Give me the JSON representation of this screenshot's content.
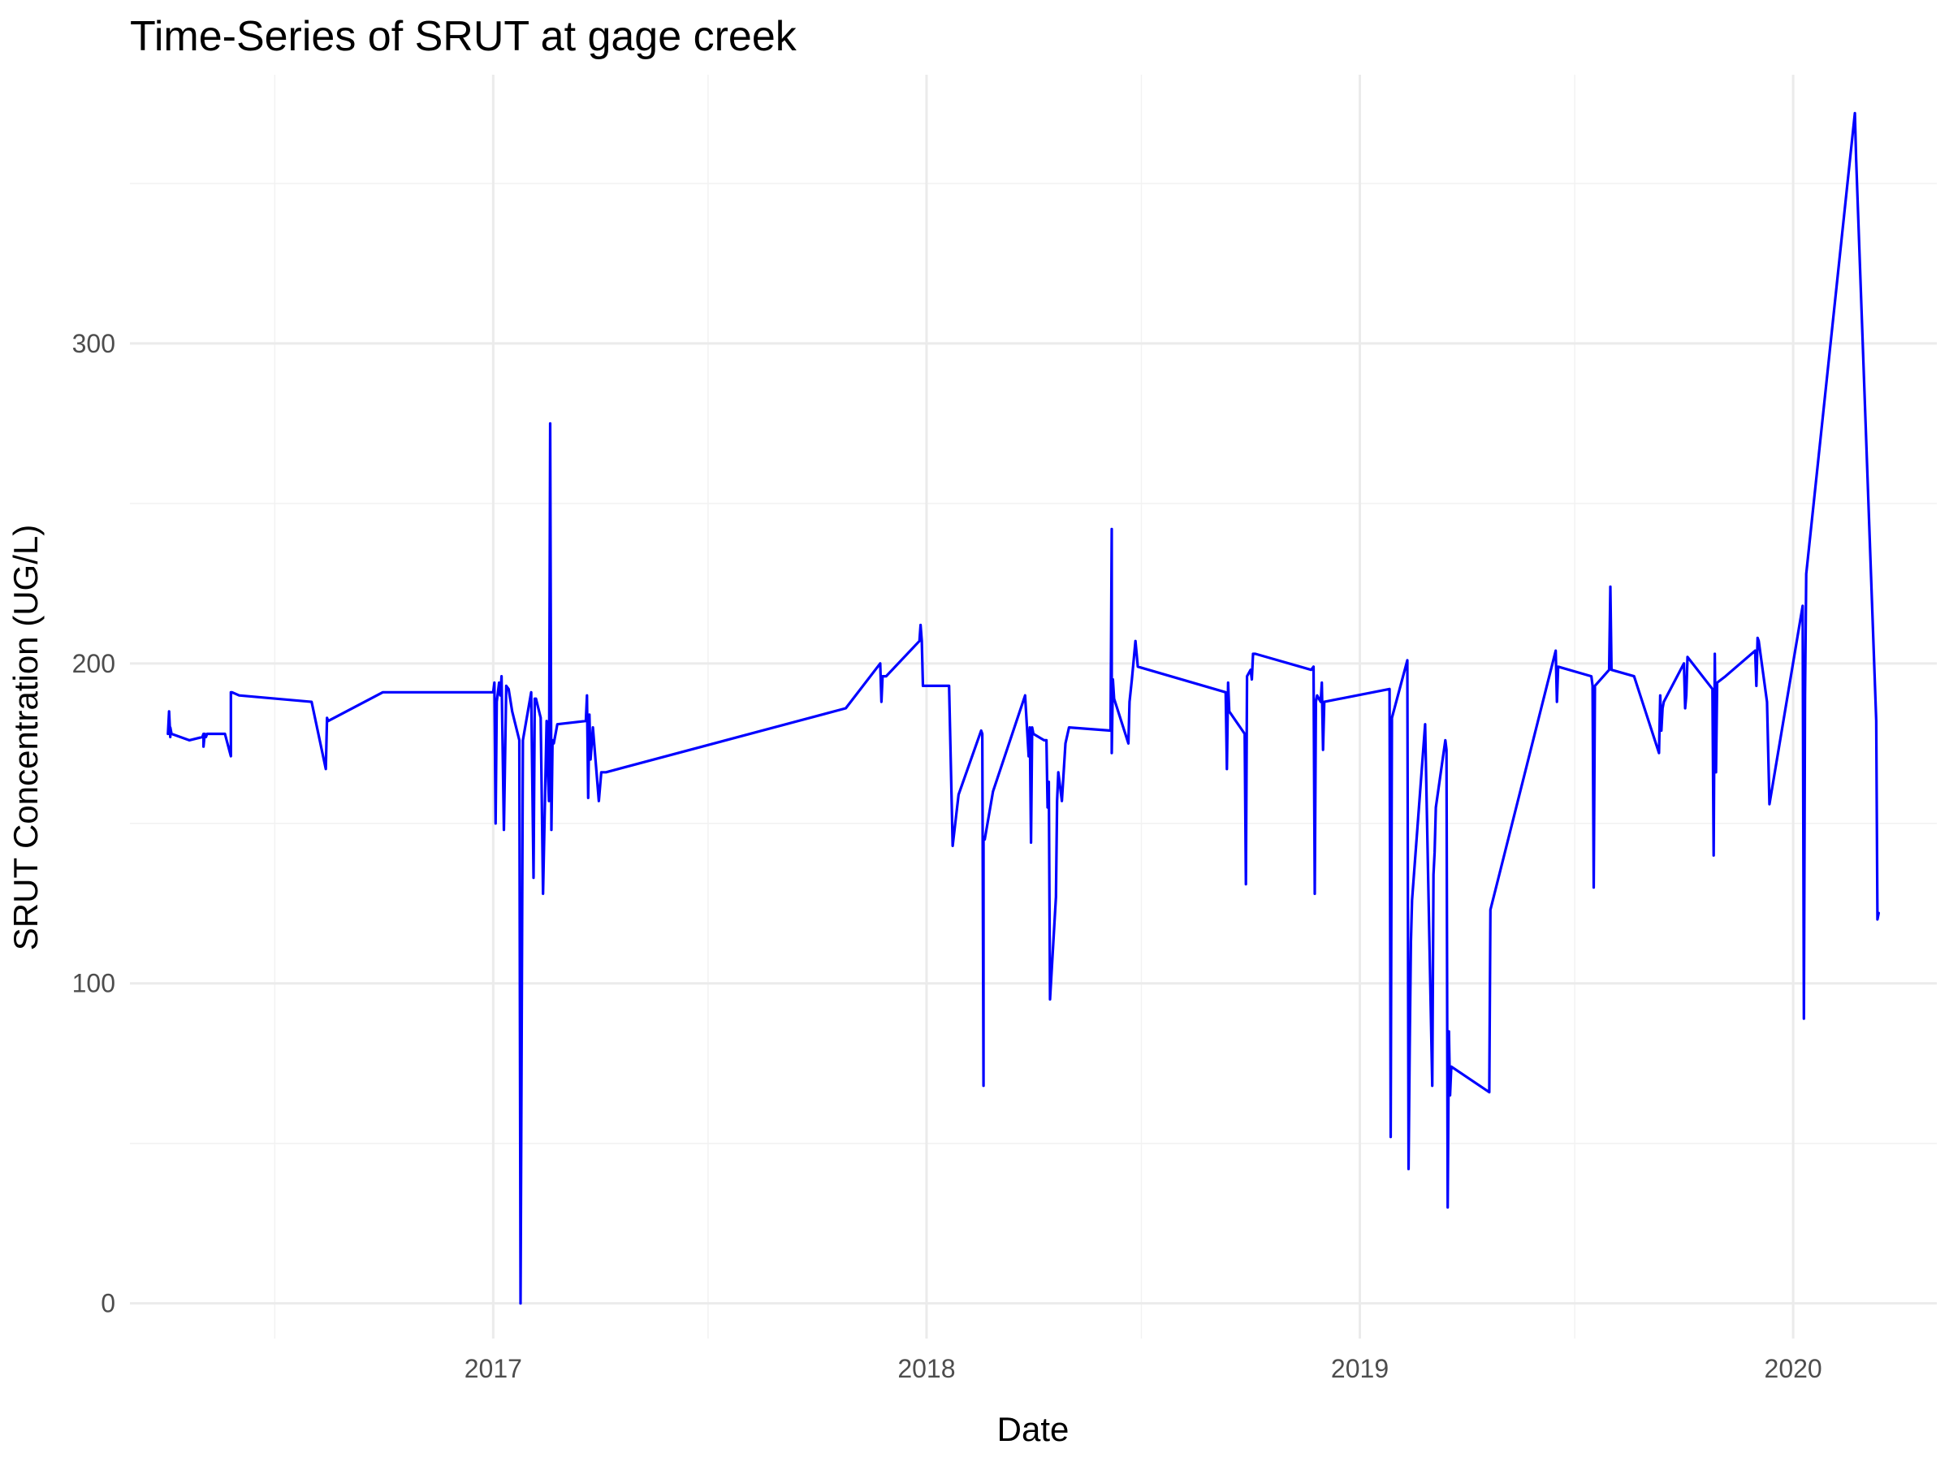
{
  "colors": {
    "series": "#0000ff",
    "grid_major": "#ebebeb",
    "grid_minor": "#f2f2f2",
    "tick_text": "#4d4d4d"
  },
  "chart_data": {
    "type": "line",
    "title": "Time-Series of SRUT at gage creek",
    "xlabel": "Date",
    "ylabel": "SRUT Concentration (UG/L)",
    "x_type": "date",
    "xlim": [
      "2016-03-01",
      "2020-05-01"
    ],
    "ylim": [
      -11,
      384
    ],
    "x_major_ticks": [
      "2017-01-01",
      "2018-01-01",
      "2019-01-01",
      "2020-01-01"
    ],
    "x_tick_labels": [
      "2017",
      "2018",
      "2019",
      "2020"
    ],
    "x_minor_ticks": [
      "2016-07-01",
      "2017-07-01",
      "2018-07-01",
      "2019-07-01"
    ],
    "y_major_ticks": [
      0,
      100,
      200,
      300
    ],
    "y_tick_labels": [
      "0",
      "100",
      "200",
      "300"
    ],
    "y_minor_ticks": [
      50,
      150,
      250,
      350
    ],
    "grid": true,
    "legend": "none",
    "series": [
      {
        "color": "#0000ff",
        "x": [
          "2016-04-02",
          "2016-04-03",
          "2016-04-04",
          "2016-04-04",
          "2016-04-05",
          "2016-04-20",
          "2016-05-01",
          "2016-05-02",
          "2016-05-02",
          "2016-05-03",
          "2016-05-04",
          "2016-05-05",
          "2016-05-20",
          "2016-05-25",
          "2016-05-25",
          "2016-05-26",
          "2016-06-01",
          "2016-08-01",
          "2016-08-13",
          "2016-08-14",
          "2016-08-14",
          "2016-08-15",
          "2016-09-30",
          "2016-12-30",
          "2017-01-01",
          "2017-01-02",
          "2017-01-03",
          "2017-01-04",
          "2017-01-06",
          "2017-01-07",
          "2017-01-08",
          "2017-01-10",
          "2017-01-12",
          "2017-01-14",
          "2017-01-17",
          "2017-01-23",
          "2017-01-24",
          "2017-01-26",
          "2017-02-02",
          "2017-02-04",
          "2017-02-05",
          "2017-02-06",
          "2017-02-08",
          "2017-02-10",
          "2017-02-12",
          "2017-02-15",
          "2017-02-16",
          "2017-02-17",
          "2017-02-18",
          "2017-02-19",
          "2017-02-20",
          "2017-02-21",
          "2017-02-22",
          "2017-02-24",
          "2017-03-20",
          "2017-03-21",
          "2017-03-22",
          "2017-03-23",
          "2017-03-24",
          "2017-03-25",
          "2017-03-26",
          "2017-03-31",
          "2017-04-02",
          "2017-04-05",
          "2017-04-06",
          "2017-10-25",
          "2017-11-23",
          "2017-11-24",
          "2017-11-25",
          "2017-11-28",
          "2017-12-26",
          "2017-12-27",
          "2017-12-28",
          "2017-12-29",
          "2018-01-20",
          "2018-01-23",
          "2018-01-28",
          "2018-02-16",
          "2018-02-17",
          "2018-02-18",
          "2018-02-18",
          "2018-02-19",
          "2018-02-26",
          "2018-03-25",
          "2018-03-28",
          "2018-03-29",
          "2018-03-30",
          "2018-03-31",
          "2018-04-01",
          "2018-04-10",
          "2018-04-12",
          "2018-04-13",
          "2018-04-14",
          "2018-04-15",
          "2018-04-20",
          "2018-04-21",
          "2018-04-22",
          "2018-04-25",
          "2018-04-28",
          "2018-05-01",
          "2018-06-05",
          "2018-06-06",
          "2018-06-06",
          "2018-06-07",
          "2018-06-08",
          "2018-06-20",
          "2018-06-21",
          "2018-06-23",
          "2018-06-26",
          "2018-06-28",
          "2018-09-10",
          "2018-09-11",
          "2018-09-12",
          "2018-09-13",
          "2018-09-26",
          "2018-09-27",
          "2018-09-28",
          "2018-10-01",
          "2018-10-02",
          "2018-10-03",
          "2018-10-05",
          "2018-11-21",
          "2018-11-23",
          "2018-11-24",
          "2018-11-25",
          "2018-11-26",
          "2018-11-29",
          "2018-11-30",
          "2018-12-01",
          "2018-12-02",
          "2019-01-26",
          "2019-01-27",
          "2019-01-28",
          "2019-02-10",
          "2019-02-11",
          "2019-02-12",
          "2019-02-13",
          "2019-02-14",
          "2019-02-25",
          "2019-03-03",
          "2019-03-04",
          "2019-03-05",
          "2019-03-06",
          "2019-03-14",
          "2019-03-15",
          "2019-03-16",
          "2019-03-17",
          "2019-03-18",
          "2019-03-19",
          "2019-04-20",
          "2019-04-21",
          "2019-06-15",
          "2019-06-16",
          "2019-06-17",
          "2019-07-15",
          "2019-07-16",
          "2019-07-17",
          "2019-07-18",
          "2019-07-30",
          "2019-07-31",
          "2019-08-01",
          "2019-08-20",
          "2019-09-10",
          "2019-09-11",
          "2019-09-12",
          "2019-09-13",
          "2019-09-14",
          "2019-10-01",
          "2019-10-02",
          "2019-10-03",
          "2019-10-04",
          "2019-10-25",
          "2019-10-26",
          "2019-10-27",
          "2019-10-28",
          "2019-10-29",
          "2019-11-05",
          "2019-11-30",
          "2019-12-01",
          "2019-12-02",
          "2019-12-03",
          "2019-12-10",
          "2019-12-11",
          "2019-12-12",
          "2020-01-09",
          "2020-01-10",
          "2020-01-11",
          "2020-01-12",
          "2020-02-22",
          "2020-02-23",
          "2020-03-11",
          "2020-03-12",
          "2020-03-13"
        ],
        "y": [
          178,
          185,
          177,
          180,
          178,
          176,
          177,
          178,
          174,
          178,
          177,
          178,
          178,
          171,
          191,
          191,
          190,
          188,
          167,
          183,
          183,
          182,
          191,
          191,
          191,
          194,
          150,
          188,
          194,
          190,
          196,
          148,
          193,
          192,
          185,
          176,
          0,
          176,
          191,
          133,
          189,
          189,
          186,
          183,
          128,
          182,
          167,
          157,
          275,
          148,
          176,
          175,
          177,
          181,
          182,
          190,
          158,
          184,
          170,
          175,
          180,
          157,
          166,
          166,
          166,
          186,
          200,
          188,
          196,
          196,
          207,
          212,
          207,
          193,
          193,
          143,
          159,
          179,
          178,
          68,
          145,
          145,
          160,
          190,
          171,
          180,
          144,
          180,
          178,
          176,
          176,
          155,
          163,
          95,
          127,
          157,
          166,
          157,
          175,
          180,
          179,
          242,
          172,
          195,
          189,
          175,
          188,
          195,
          207,
          199,
          191,
          167,
          194,
          185,
          178,
          131,
          196,
          198,
          195,
          203,
          203,
          198,
          199,
          128,
          188,
          190,
          188,
          194,
          173,
          188,
          192,
          52,
          183,
          201,
          42,
          80,
          113,
          126,
          181,
          68,
          134,
          141,
          155,
          176,
          173,
          30,
          85,
          65,
          74,
          66,
          123,
          204,
          188,
          199,
          196,
          193,
          130,
          193,
          198,
          224,
          198,
          196,
          172,
          190,
          179,
          186,
          188,
          200,
          186,
          190,
          202,
          192,
          140,
          203,
          166,
          194,
          196,
          204,
          193,
          208,
          207,
          188,
          172,
          156,
          218,
          89,
          190,
          228,
          372,
          358,
          182,
          120,
          122
        ]
      }
    ]
  }
}
